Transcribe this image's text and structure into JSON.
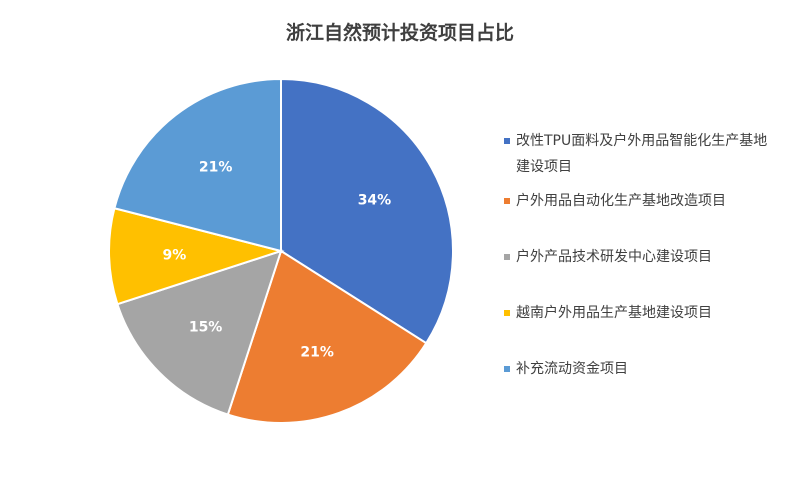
{
  "chart_data": {
    "type": "pie",
    "title": "浙江自然预计投资项目占比",
    "categories": [
      "改性TPU面料及户外用品智能化生产基地建设项目",
      "户外用品自动化生产基地改造项目",
      "户外产品技术研发中心建设项目",
      "越南户外用品生产基地建设项目",
      "补充流动资金项目"
    ],
    "values": [
      34,
      21,
      15,
      9,
      21
    ],
    "data_labels": [
      "34%",
      "21%",
      "15%",
      "9%",
      "21%"
    ],
    "colors": [
      "#4472C4",
      "#ED7D31",
      "#A5A5A5",
      "#FFC000",
      "#5B9BD5"
    ],
    "legend_position": "right",
    "start_angle_deg": 0,
    "direction": "clockwise"
  }
}
